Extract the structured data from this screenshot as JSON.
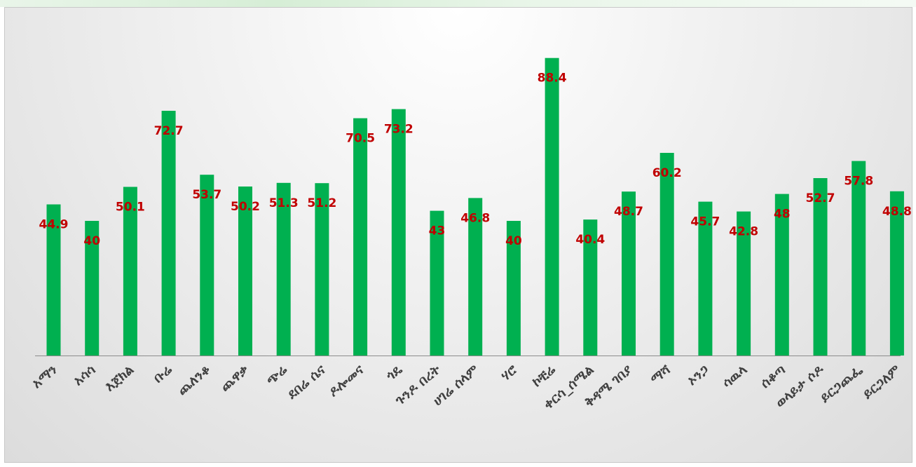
{
  "chart_data": {
    "type": "bar",
    "title": "",
    "xlabel": "",
    "ylabel": "",
    "ylim": [
      0,
      100
    ],
    "categories": [
      "አማን",
      "አሳሳ",
      "እጀክል",
      "ቡሬ",
      "ጨለንቆ",
      "ጨዋቃ",
      "ጭሬ",
      "ደበሬ ሴና",
      "ዶሎመና",
      "ጎዴ",
      "ጉንዶ በረት",
      "ሀገሬ ሰላም",
      "ሃሮ",
      "ኮቺሬ",
      "ቀርሳ_ሰሜል",
      "ቅዳሜ ገበያ",
      "ማሻ",
      "ኦንጋ",
      "ሳዉላ",
      "ሰቆጣ",
      "ወላይታ ሶዶ",
      "ይርጋጨፌ",
      "ይርጋለም"
    ],
    "values": [
      44.9,
      40,
      50.1,
      72.7,
      53.7,
      50.2,
      51.3,
      51.2,
      70.5,
      73.2,
      43,
      46.8,
      40,
      88.4,
      40.4,
      48.7,
      60.2,
      45.7,
      42.8,
      48,
      52.7,
      57.8,
      48.8
    ],
    "bar_color": "#00b050",
    "label_color": "#c00000",
    "grid": false,
    "legend": "none"
  }
}
